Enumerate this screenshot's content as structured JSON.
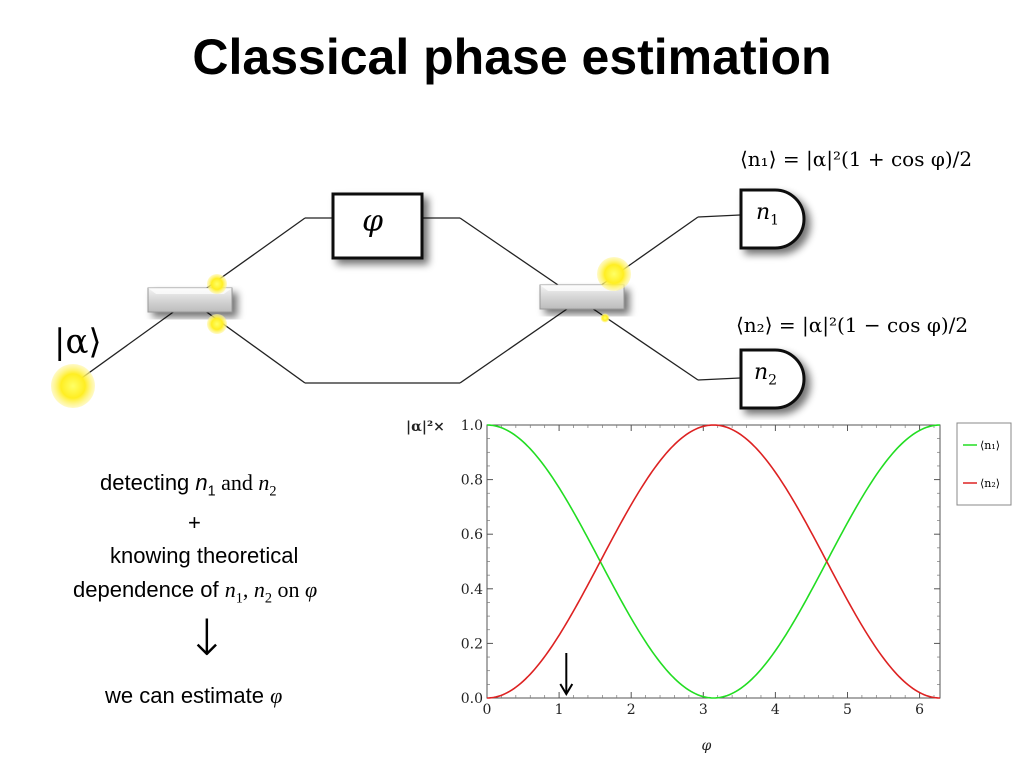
{
  "slide": {
    "title": "Classical phase estimation"
  },
  "diagram": {
    "input_state": "|α⟩",
    "phase_label": "φ",
    "eq_n1": "⟨n₁⟩ = |α|²(1 + cos φ)/2",
    "eq_n2": "⟨n₂⟩ = |α|²(1 − cos φ)/2",
    "detector_n1": {
      "var": "n",
      "sub": "1"
    },
    "detector_n2": {
      "var": "n",
      "sub": "2"
    }
  },
  "reasoning": {
    "line1_prefix": "detecting ",
    "line1_n1": "n",
    "line1_n1_sub": "1",
    "line1_and": " and ",
    "line1_n2": "n",
    "line1_n2_sub": "2",
    "plus": "+",
    "line3": "knowing theoretical",
    "line4_prefix": "dependence of ",
    "line4_n1": "n",
    "line4_n1_sub": "1",
    "line4_comma": ", ",
    "line4_n2": "n",
    "line4_n2_sub": "2",
    "line4_on": " on ",
    "line4_phi": "φ",
    "arrow": "↓",
    "conclusion_prefix": "we can estimate ",
    "conclusion_phi": "φ"
  },
  "chart_data": {
    "type": "line",
    "ylabel": "|α|²×",
    "xlabel": "φ",
    "xlim": [
      0,
      6.2832
    ],
    "ylim": [
      0,
      1.0
    ],
    "x_ticks": [
      "0",
      "1",
      "2",
      "3",
      "4",
      "5",
      "6"
    ],
    "y_ticks": [
      "0.0",
      "0.2",
      "0.4",
      "0.6",
      "0.8",
      "1.0"
    ],
    "series": [
      {
        "name": "⟨n₁⟩",
        "formula": "(1+cos φ)/2",
        "color": "#22dd22"
      },
      {
        "name": "⟨n₂⟩",
        "formula": "(1−cos φ)/2",
        "color": "#dd2222"
      }
    ],
    "annotation_arrow_x": 1.1,
    "legend_placement": "right"
  }
}
